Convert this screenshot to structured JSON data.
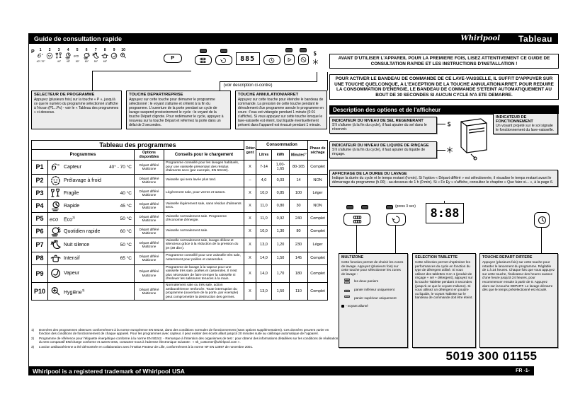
{
  "header": {
    "title": "Guide de consultation rapide",
    "brand": "Whirlpool",
    "doc": "Tableau"
  },
  "panel": {
    "selector_label": "P",
    "button_p": "P",
    "display": "885",
    "note_see": "(voir description ci-contre)",
    "programs": [
      {
        "num": "1",
        "icon": "sense6",
        "temp": "40°-70°"
      },
      {
        "num": "2",
        "icon": "prewash",
        "temp": ""
      },
      {
        "num": "3",
        "icon": "fragile",
        "temp": "40°"
      },
      {
        "num": "4",
        "icon": "rapide",
        "temp": "45°"
      },
      {
        "num": "5",
        "icon": "eco",
        "temp": "50°"
      },
      {
        "num": "6",
        "icon": "quotidien",
        "temp": "60°"
      },
      {
        "num": "7",
        "icon": "nuit",
        "temp": "50°"
      },
      {
        "num": "8",
        "icon": "intensif",
        "temp": "65°"
      },
      {
        "num": "9",
        "icon": "vapeur",
        "temp": ""
      },
      {
        "num": "10",
        "icon": "hygiene",
        "temp": ""
      }
    ]
  },
  "callouts": [
    {
      "title": "SELECTEUR DE PROGRAMME",
      "body": "Appuyez (plusieurs fois) sur la touche « P », jusqu'à ce que le numéro du programme sélectionné s'affiche à l'écran (P1...Px) - voir le « Tableau des programmes » ci-dessous."
    },
    {
      "title": "TOUCHE DEPART/REPRISE",
      "body": "Appuyez sur cette touche pour démarrer le programme sélectionné : le voyant s'allume et s'éteint à la fin du programme. L'ouverture de la porte pendant un cycle de lavage suspend provisoirement le cycle : le voyant de la touche Départ clignote. Pour redémarrer le cycle, appuyez à nouveau sur la touche Départ et refermez la porte dans un délai de 3 secondes."
    },
    {
      "title": "TOUCHE ANNULATION/ARRET",
      "body": "Appuyez sur cette touche pour éteindre le bandeau de commande. La pression de cette touche pendant le déroulement d'un programme annule le programme en cours : l'eau est vidangée pendant 1 minute (0:01 s'affiche). Si vous appuyez sur cette touche lorsque le lave-vaisselle est éteint, tout liquide éventuellement présent dans l'appareil est évacué pendant 1 minute."
    }
  ],
  "notices": [
    "AVANT D'UTILISER L'APPAREIL POUR LA PREMIERE FOIS, LISEZ ATTENTIVEMENT CE GUIDE DE CONSULTATION RAPIDE ET LES INSTRUCTIONS D'INSTALLATION !",
    "POUR ACTIVER LE BANDEAU DE COMMANDE DE CE LAVE-VAISSELLE, IL SUFFIT D'APPUYER SUR UNE TOUCHE QUELCONQUE, A L'EXCEPTION DE LA TOUCHE ANNULATION/ARRET. POUR REDUIRE LA CONSOMMATION D'ENERGIE, LE BANDEAU DE COMMANDE S'ETEINT AUTOMATIQUEMENT AU BOUT DE 30 SECONDES SI AUCUN CYCLE N'A ETE DEMARRE."
  ],
  "options": {
    "bar_title": "Description des options et de l'afficheur",
    "salt_title": "INDICATEUR DU NIVEAU DE SEL REGENERANT",
    "salt_body": "S'il s'allume (à la fin du cycle), il faut ajouter du sel dans le réservoir.",
    "rinse_title": "INDICATEUR DU NIVEAU DE LIQUIDE DE RINÇAGE",
    "rinse_body": "S'il s'allume (à la fin du cycle), il faut ajouter du liquide de rinçage.",
    "run_title": "INDICATEUR DE FONCTIONNEMENT",
    "run_body": "Un voyant projeté sur le sol signale le fonctionnement du lave-vaisselle.",
    "time_title": "AFFICHAGE DE LA DUREE DU LAVAGE",
    "time_body": "Indique la durée du cycle et le temps restant (h:min). Si l'option « Départ différé » est sélectionnée, il visualise le temps restant avant le démarrage du programme (h.00) - au-dessous de 1 h (0:min). Si « Fx Ey » s'affiche, consultez le chapitre « Que faire si... », à la page 6.",
    "display_big": "8:88",
    "press_note": "(press 3 sec)",
    "multizone": {
      "title": "MULTIZONE",
      "intro": "Cette fonction permet de choisir les zones de lavage. Appuyez (plusieurs fois) sur cette touche pour sélectionner les zones de lavage :",
      "items": [
        {
          "icon": "basket-both",
          "label": "les deux paniers"
        },
        {
          "icon": "basket-lower",
          "label": "panier inférieur uniquement"
        },
        {
          "icon": "basket-upper",
          "label": "panier supérieur uniquement"
        }
      ],
      "legend": "- voyant allumé"
    },
    "tablette": {
      "title": "SELECTION TABLETTE",
      "body": "Cette sélection permet d'optimiser les performances du cycle en fonction du type de détergent utilisé. Si vous utilisez des tablettes 3 en 1 (produit de rinçage + sel + détergent), appuyez sur la touche Tablette pendant 3 secondes (jusqu'à ce que le voyant s'allume). Si vous utilisez un détergent en poudre ou liquide, le voyant Tablette sur le bandeau de commande doit être éteint."
    },
    "depart": {
      "title": "TOUCHE DEPART DIFFERE",
      "body": "Appuyez (plusieurs fois) sur cette touche pour retarder le lancement du programme. Réglable de 1 à 24 heures. Chaque fois que vous appuyez sur cette touche, l'indicateur des heures avance d'une heure jusqu'à 24 heures, pour recommencer ensuite à partir de 0. Appuyez alors sur la touche DEPART. Le lavage démarre dès que le temps présélectionné est écoulé."
    },
    "part_number": "5019 300 01155"
  },
  "table": {
    "title": "Tableau des programmes",
    "h_programmes": "Programmes",
    "h_options": "Options disponibles",
    "h_conseils": "Conseils pour le chargement",
    "h_detergent": "Déter- gent",
    "h_conso": "Consommation",
    "h_litres": "Litres",
    "h_kwh": "kWh",
    "h_minutes": "Minutes",
    "h_minutes_sup": "1)",
    "h_phase": "Phase de séchage",
    "rows": [
      {
        "id": "P1",
        "icon": "sense6",
        "name": "Capteur",
        "sup": "",
        "temp": "40° - 70 °C",
        "options": [
          "Départ différé",
          "Multizone"
        ],
        "conseil": "Programme conseillé pour les lavages habituels, pour une vaisselle présentant des résidus d'aliments secs (par exemple, EN 50242).",
        "det": "X",
        "litres": "7-14",
        "kwh": "1,00-1,65",
        "minutes": "80-165",
        "phase": "Complet"
      },
      {
        "id": "P2",
        "icon": "prewash",
        "name": "Prélavage à froid",
        "sup": "",
        "temp": "",
        "options": [
          "Départ différé",
          "Multizone"
        ],
        "conseil": "Vaisselle qui sera lavée plus tard.",
        "det": "–",
        "litres": "4,0",
        "kwh": "0,03",
        "minutes": "14",
        "phase": "NON"
      },
      {
        "id": "P3",
        "icon": "fragile",
        "name": "Fragile",
        "sup": "",
        "temp": "40 °C",
        "options": [
          "Départ différé",
          "Multizone"
        ],
        "conseil": "Légèrement sale, pour verres et tasses.",
        "det": "X",
        "litres": "10,0",
        "kwh": "0,85",
        "minutes": "100",
        "phase": "Léger"
      },
      {
        "id": "P4",
        "icon": "rapide",
        "name": "Rapide",
        "sup": "",
        "temp": "45 °C",
        "options": [
          "Départ différé",
          "Multizone"
        ],
        "conseil": "Vaisselle légèrement sale, sans résidus d'aliments secs.",
        "det": "X",
        "litres": "11,0",
        "kwh": "0,80",
        "minutes": "30",
        "phase": "NON"
      },
      {
        "id": "P5",
        "icon": "eco",
        "name": "Eco",
        "sup": "2)",
        "temp": "50 °C",
        "options": [
          "Départ différé",
          "Multizone"
        ],
        "conseil": "Vaisselle normalement sale. Programme d'économie d'énergie.",
        "det": "X",
        "litres": "11,0",
        "kwh": "0,92",
        "minutes": "240",
        "phase": "Complet"
      },
      {
        "id": "P6",
        "icon": "quotidien",
        "name": "Quotidien rapide",
        "sup": "",
        "temp": "60 °C",
        "options": [
          "Départ différé",
          "Multizone"
        ],
        "conseil": "Vaisselle normalement sale.",
        "det": "X",
        "litres": "10,0",
        "kwh": "1,30",
        "minutes": "80",
        "phase": "Complet"
      },
      {
        "id": "P7",
        "icon": "nuit",
        "name": "Nuit silence",
        "sup": "",
        "temp": "50 °C",
        "options": [
          "Départ différé",
          "Multizone"
        ],
        "conseil": "Vaisselle normalement sale, lavage délicat et silencieux grâce à la réduction de la pression du jet (39 dbA).",
        "det": "X",
        "litres": "13,0",
        "kwh": "1,20",
        "minutes": "230",
        "phase": "Léger"
      },
      {
        "id": "P8",
        "icon": "intensif",
        "name": "Intensif",
        "sup": "",
        "temp": "65 °C",
        "options": [
          "Départ différé",
          "Multizone"
        ],
        "conseil": "Programme conseillé pour une vaisselle très sale, notamment pour poêles et casseroles.",
        "det": "X",
        "litres": "14,0",
        "kwh": "1,50",
        "minutes": "145",
        "phase": "Complet"
      },
      {
        "id": "P9",
        "icon": "vapeur",
        "name": "Vapeur",
        "sup": "",
        "temp": "",
        "options": [
          "Départ différé",
          "Multizone"
        ],
        "conseil": "Programme de lavage à la vapeur pour une vaisselle très sale, poêles et casseroles. Il n'est plus nécessaire de faire tremper la vaisselle ni d'enlever les salissures tenaces à la main.",
        "det": "X",
        "litres": "14,0",
        "kwh": "1,70",
        "minutes": "180",
        "phase": "Complet"
      },
      {
        "id": "P10",
        "icon": "hygiene",
        "name": "Hygiène",
        "sup": "3)",
        "temp": "",
        "options": [
          "Départ différé",
          "Multizone"
        ],
        "conseil": "Normalement sale ou très sale, action antibactérienne renforcée. Toute interruption du programme (ouverture de la porte, par exemple) peut compromettre la destruction des germes.",
        "det": "X",
        "litres": "13,0",
        "kwh": "1,50",
        "minutes": "110",
        "phase": "Complet"
      }
    ]
  },
  "footnotes": [
    {
      "mark": "1)",
      "text": "Données des programmes obtenues conformément à la norme européenne EN 50242, dans des conditions normales de fonctionnement (sans options supplémentaires). Ces données peuvent varier en fonction des conditions de fonctionnement de chaque appareil. Pour les programmes avec capteur, il peut exister des écarts allant jusqu'à 20 minutes suite au calibrage automatique de l'appareil."
    },
    {
      "mark": "2)",
      "text": "Programme de référence pour l'étiquette énergétique conforme à la norme EN 50242. - Remarque à l'intention des organismes de test : pour obtenir des informations détaillées sur les conditions de réalisation du test comparatif EN/Charge conforme et autres tests, contactez-nous à l'adresse électronique suivante : « nk_customer@whirlpool.com »."
    },
    {
      "mark": "3)",
      "text": "L'action antibactérienne a été démontrée en collaboration avec l'Institut Pasteur de Lille, conformément à la norme NF EN 13697 de novembre 2001."
    }
  ],
  "footer": {
    "trademark": "Whirlpool is a registered trademark of Whirlpool USA",
    "page": "FR -1-"
  }
}
